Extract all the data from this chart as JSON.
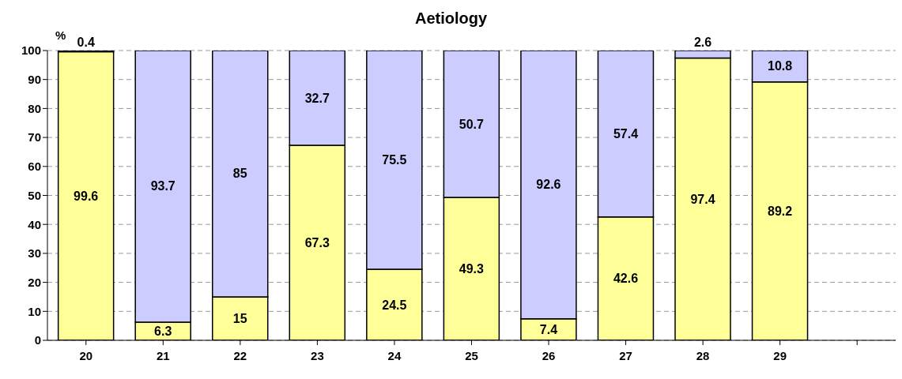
{
  "chart_data": {
    "type": "bar",
    "title": "Aetiology",
    "ylabel": "%",
    "stacked": true,
    "data_labels": true,
    "grid": "y",
    "legend": false,
    "categories": [
      "20",
      "21",
      "22",
      "23",
      "24",
      "25",
      "26",
      "27",
      "28",
      "29",
      null
    ],
    "series": [
      {
        "color": "#ffff99",
        "values": [
          99.6,
          6.3,
          15,
          67.3,
          24.5,
          49.3,
          7.4,
          42.6,
          97.4,
          89.2,
          null
        ]
      },
      {
        "color": "#ccccff",
        "values": [
          0.4,
          93.7,
          85,
          32.7,
          75.5,
          50.7,
          92.6,
          57.4,
          2.6,
          10.8,
          null
        ]
      }
    ],
    "ylim": [
      0,
      100
    ],
    "yticks": [
      0,
      10,
      20,
      30,
      40,
      50,
      60,
      70,
      80,
      90,
      100
    ]
  }
}
